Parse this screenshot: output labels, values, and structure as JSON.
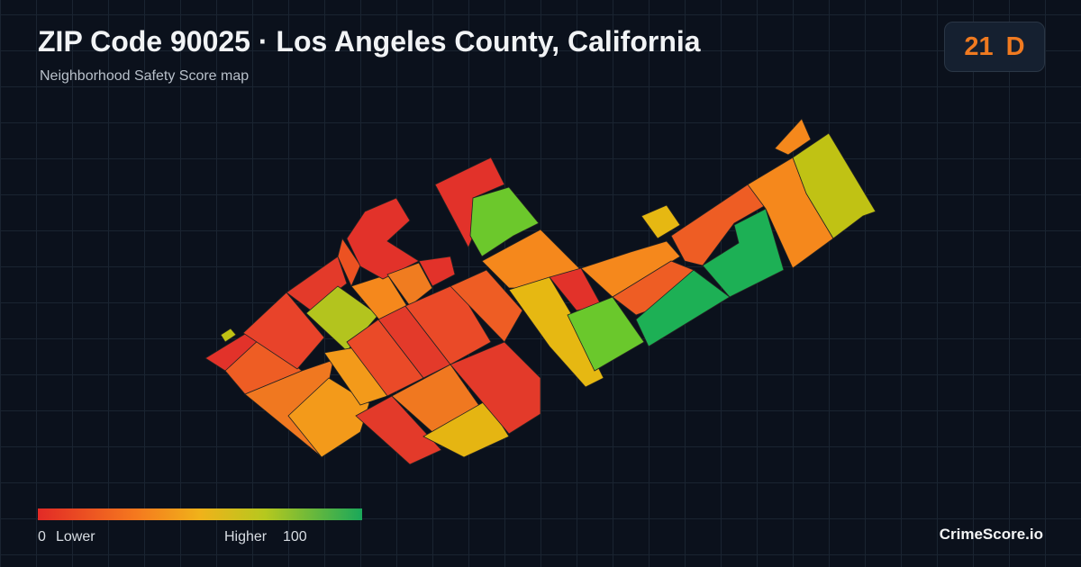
{
  "header": {
    "title": "ZIP Code 90025 · Los Angeles County, California",
    "subtitle": "Neighborhood Safety Score map"
  },
  "score": {
    "value": 21,
    "grade": "D"
  },
  "legend": {
    "min": 0,
    "min_label": "Lower",
    "max_label": "Higher",
    "max": 100
  },
  "footer": {
    "brand": "CrimeScore.io"
  }
}
